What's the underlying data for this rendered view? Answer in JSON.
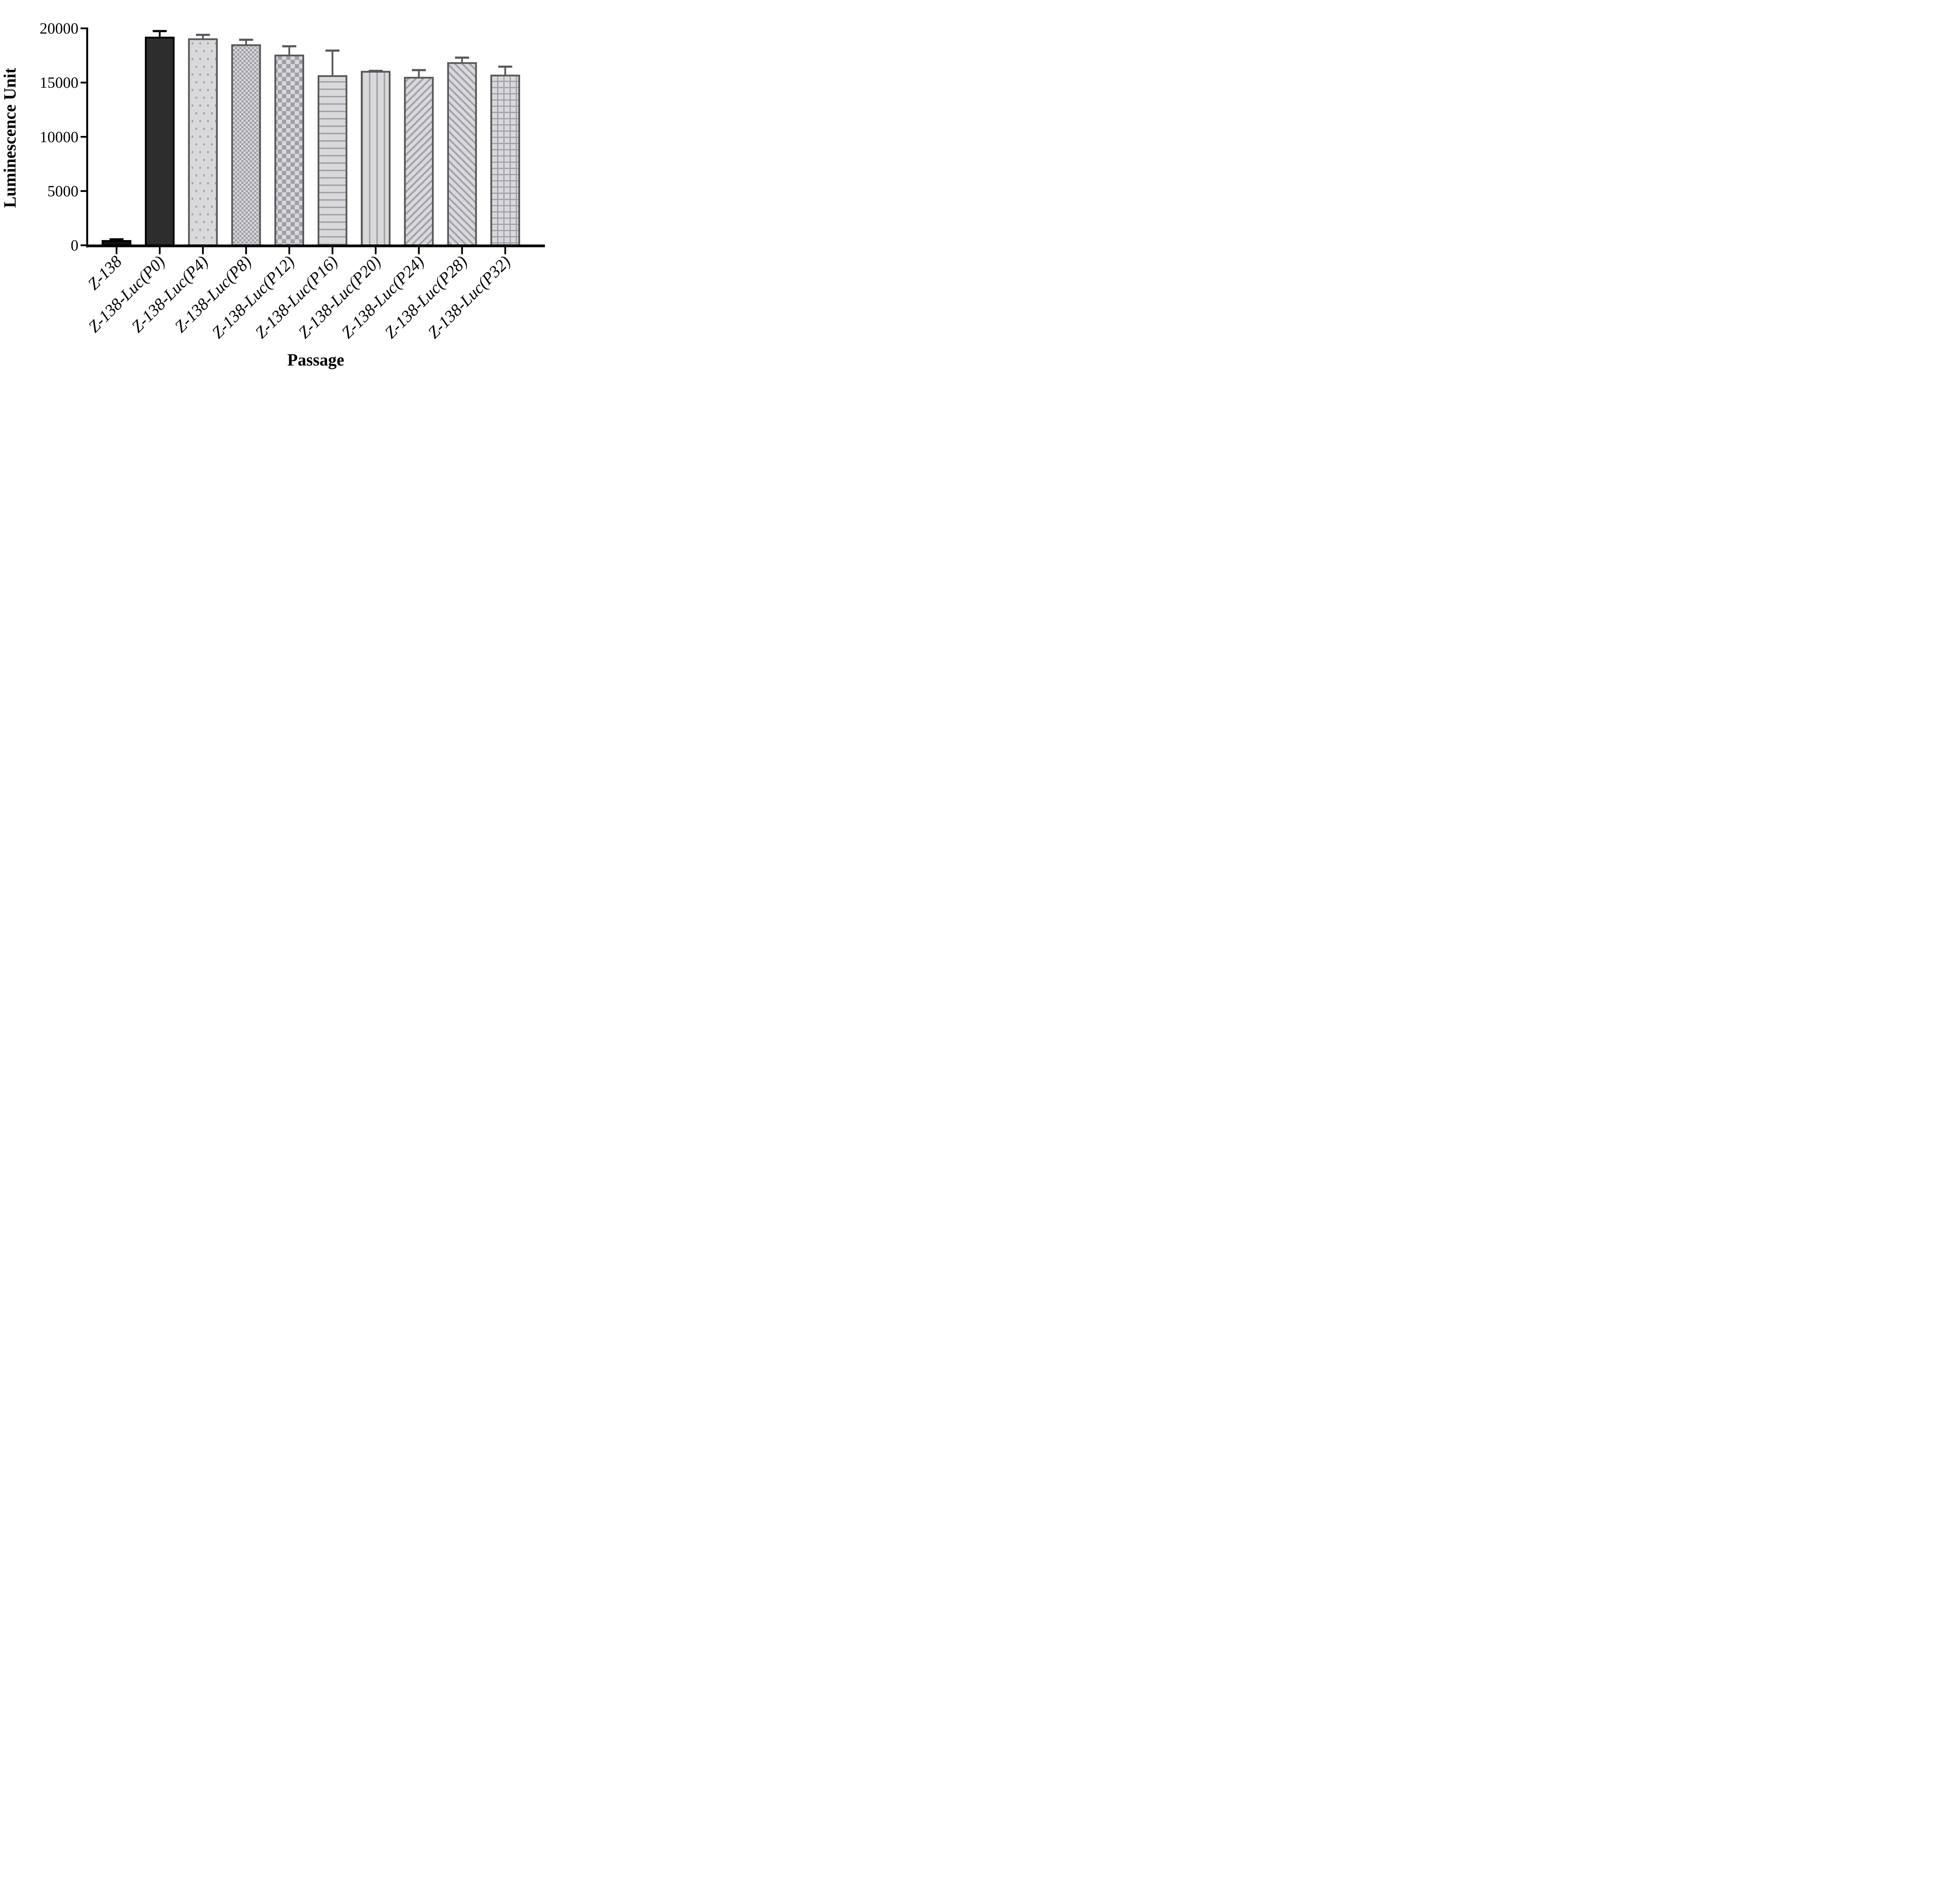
{
  "figure": {
    "background": "#ffffff",
    "description": "Bar chart of luciferase luminescence stability across cell passages"
  },
  "chart_data": {
    "type": "bar",
    "title": "",
    "xlabel": "Passage",
    "ylabel": "Luminescence Unit",
    "ylim": [
      0,
      20000
    ],
    "yticks": [
      0,
      5000,
      10000,
      15000,
      20000
    ],
    "grid": false,
    "legend": "none",
    "categories": [
      "Z-138",
      "Z-138-Luc(P0)",
      "Z-138-Luc(P4)",
      "Z-138-Luc(P8)",
      "Z-138-Luc(P12)",
      "Z-138-Luc(P16)",
      "Z-138-Luc(P20)",
      "Z-138-Luc(P24)",
      "Z-138-Luc(P28)",
      "Z-138-Luc(P32)"
    ],
    "values": [
      400,
      19150,
      19000,
      18450,
      17500,
      15600,
      16000,
      15450,
      16800,
      15650
    ],
    "errors_plus": [
      150,
      600,
      400,
      500,
      850,
      2350,
      80,
      700,
      500,
      820
    ],
    "error_direction": "plus-only",
    "bar_styles": [
      {
        "pattern": "solid",
        "fill": "#111111",
        "stroke": "#000000",
        "error_color": "#000000"
      },
      {
        "pattern": "solid",
        "fill": "#2d2d2d",
        "stroke": "#000000",
        "error_color": "#000000"
      },
      {
        "pattern": "dots",
        "fill": "pattern",
        "stroke": "#58585a",
        "error_color": "#58585a"
      },
      {
        "pattern": "checker-fine",
        "fill": "pattern",
        "stroke": "#58585a",
        "error_color": "#58585a"
      },
      {
        "pattern": "checker-coarse",
        "fill": "pattern",
        "stroke": "#58585a",
        "error_color": "#58585a"
      },
      {
        "pattern": "hlines",
        "fill": "pattern",
        "stroke": "#58585a",
        "error_color": "#58585a"
      },
      {
        "pattern": "vlines",
        "fill": "pattern",
        "stroke": "#58585a",
        "error_color": "#58585a"
      },
      {
        "pattern": "diag-up",
        "fill": "pattern",
        "stroke": "#58585a",
        "error_color": "#58585a"
      },
      {
        "pattern": "diag-down",
        "fill": "pattern",
        "stroke": "#58585a",
        "error_color": "#58585a"
      },
      {
        "pattern": "grid",
        "fill": "pattern",
        "stroke": "#58585a",
        "error_color": "#58585a"
      }
    ],
    "pattern_colors": {
      "light": "#d9d9db",
      "mid": "#9fa0a8",
      "border": "#58585a"
    },
    "axis_color": "#000000"
  }
}
